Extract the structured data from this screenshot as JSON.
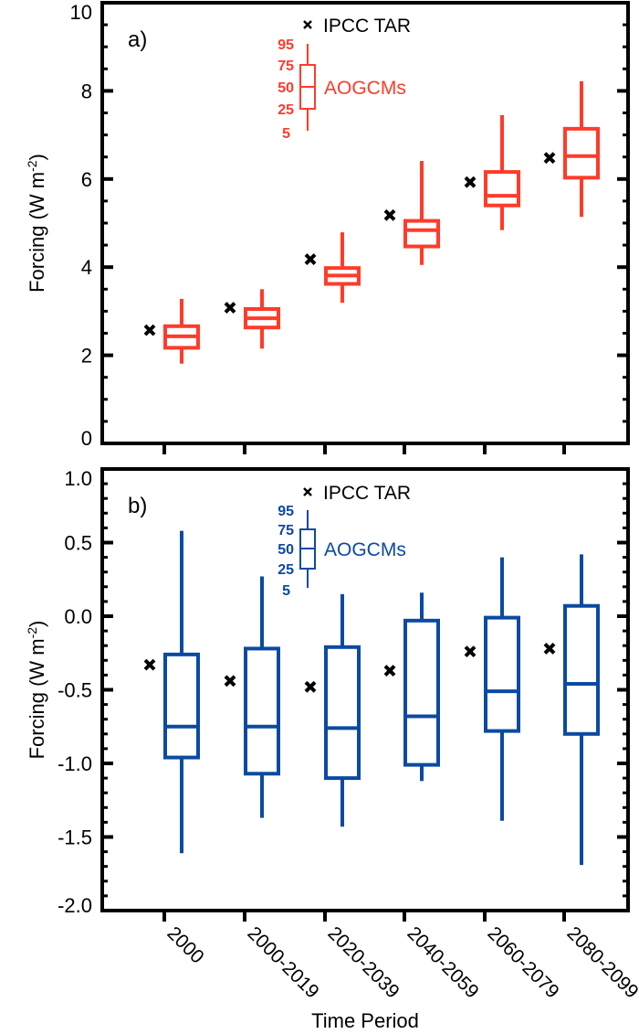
{
  "chart_data": [
    {
      "type": "box",
      "panel_label": "a)",
      "ylabel": "Forcing (W m-2)",
      "ylabel_parts": {
        "main": "Forcing (W m",
        "sup": "-2",
        "end": ")"
      },
      "ylim": [
        0,
        10
      ],
      "yticks": [
        "0",
        "2",
        "4",
        "6",
        "8",
        "10"
      ],
      "ytick_values": [
        0,
        2,
        4,
        6,
        8,
        10
      ],
      "color": "#ff3b2a",
      "categories": [
        "2000",
        "2000-2019",
        "2020-2039",
        "2040-2059",
        "2060-2079",
        "2080-2099"
      ],
      "legend": {
        "marker_label": "IPCC TAR",
        "box_label": "AOGCMs",
        "percentiles": [
          "95",
          "75",
          "50",
          "25",
          "5"
        ]
      },
      "series": [
        {
          "name": "AOGCMs",
          "p5": [
            1.81,
            2.15,
            3.19,
            4.05,
            4.84,
            5.14
          ],
          "p25": [
            2.17,
            2.63,
            3.62,
            4.47,
            5.4,
            6.03
          ],
          "p50": [
            2.43,
            2.84,
            3.81,
            4.84,
            5.62,
            6.52
          ],
          "p75": [
            2.66,
            3.05,
            3.98,
            5.05,
            6.16,
            7.14
          ],
          "p95": [
            3.28,
            3.5,
            4.79,
            6.41,
            7.45,
            8.22
          ]
        },
        {
          "name": "IPCC TAR",
          "values": [
            2.57,
            3.08,
            4.18,
            5.18,
            5.93,
            6.48
          ]
        }
      ]
    },
    {
      "type": "box",
      "panel_label": "b)",
      "ylabel": "Forcing (W m-2)",
      "ylabel_parts": {
        "main": "Forcing (W m",
        "sup": "-2",
        "end": ")"
      },
      "xlabel": "Time Period",
      "ylim": [
        -2.0,
        1.0
      ],
      "yticks": [
        "-2.0",
        "-1.5",
        "-1.0",
        "-0.5",
        "0.0",
        "0.5",
        "1.0"
      ],
      "ytick_values": [
        -2.0,
        -1.5,
        -1.0,
        -0.5,
        0.0,
        0.5,
        1.0
      ],
      "color": "#0b4aa2",
      "categories": [
        "2000",
        "2000-2019",
        "2020-2039",
        "2040-2059",
        "2060-2079",
        "2080-2099"
      ],
      "legend": {
        "marker_label": "IPCC TAR",
        "box_label": "AOGCMs",
        "percentiles": [
          "95",
          "75",
          "50",
          "25",
          "5"
        ]
      },
      "series": [
        {
          "name": "AOGCMs",
          "p5": [
            -1.61,
            -1.37,
            -1.43,
            -1.12,
            -1.39,
            -1.69
          ],
          "p25": [
            -0.96,
            -1.07,
            -1.1,
            -1.01,
            -0.78,
            -0.8
          ],
          "p50": [
            -0.75,
            -0.75,
            -0.76,
            -0.68,
            -0.51,
            -0.46
          ],
          "p75": [
            -0.26,
            -0.22,
            -0.21,
            -0.03,
            -0.01,
            0.07
          ],
          "p95": [
            0.58,
            0.27,
            0.15,
            0.16,
            0.4,
            0.42
          ]
        },
        {
          "name": "IPCC TAR",
          "values": [
            -0.33,
            -0.44,
            -0.48,
            -0.37,
            -0.24,
            -0.22
          ]
        }
      ]
    }
  ]
}
